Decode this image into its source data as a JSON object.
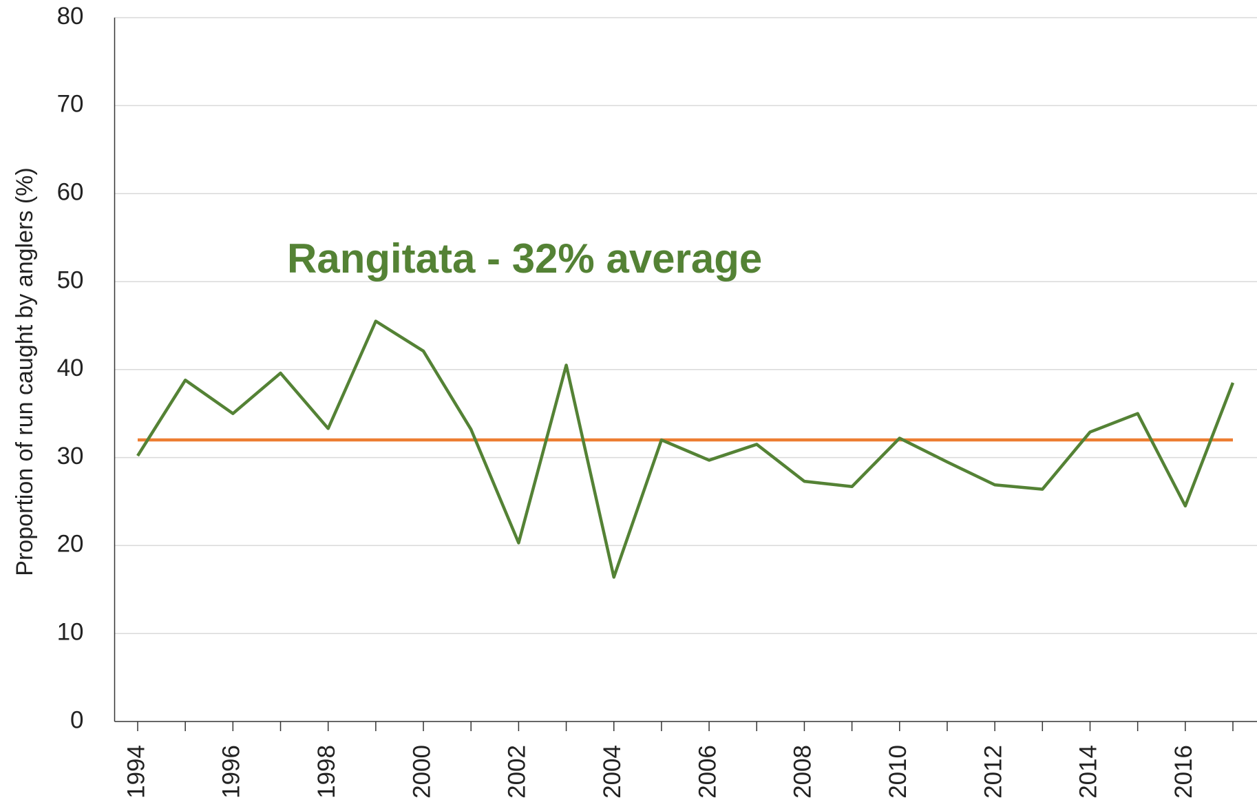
{
  "chart_data": {
    "type": "line",
    "annotation": "Rangitata - 32% average",
    "y_label": "Proportion of run caught by anglers (%)",
    "categories": [
      "1994",
      null,
      "1996",
      null,
      "1998",
      null,
      "2000",
      null,
      "2002",
      null,
      "2004",
      null,
      "2006",
      null,
      "2008",
      null,
      "2010",
      null,
      "2012",
      null,
      "2014",
      null,
      "2016",
      null
    ],
    "series": [
      {
        "color": "#548235",
        "values": [
          30.2,
          38.8,
          35,
          39.6,
          33.3,
          45.5,
          42.1,
          33.2,
          20.3,
          40.5,
          16.4,
          32,
          29.7,
          31.5,
          27.3,
          26.7,
          32.2,
          29.5,
          26.9,
          26.4,
          32.9,
          35,
          24.5,
          38.5
        ]
      }
    ],
    "reference_line": {
      "value": 32,
      "color": "#ed7d31"
    },
    "ylim": [
      0,
      80
    ],
    "yticks": [
      0,
      10,
      20,
      30,
      40,
      50,
      60,
      70,
      80
    ],
    "grid": true
  }
}
